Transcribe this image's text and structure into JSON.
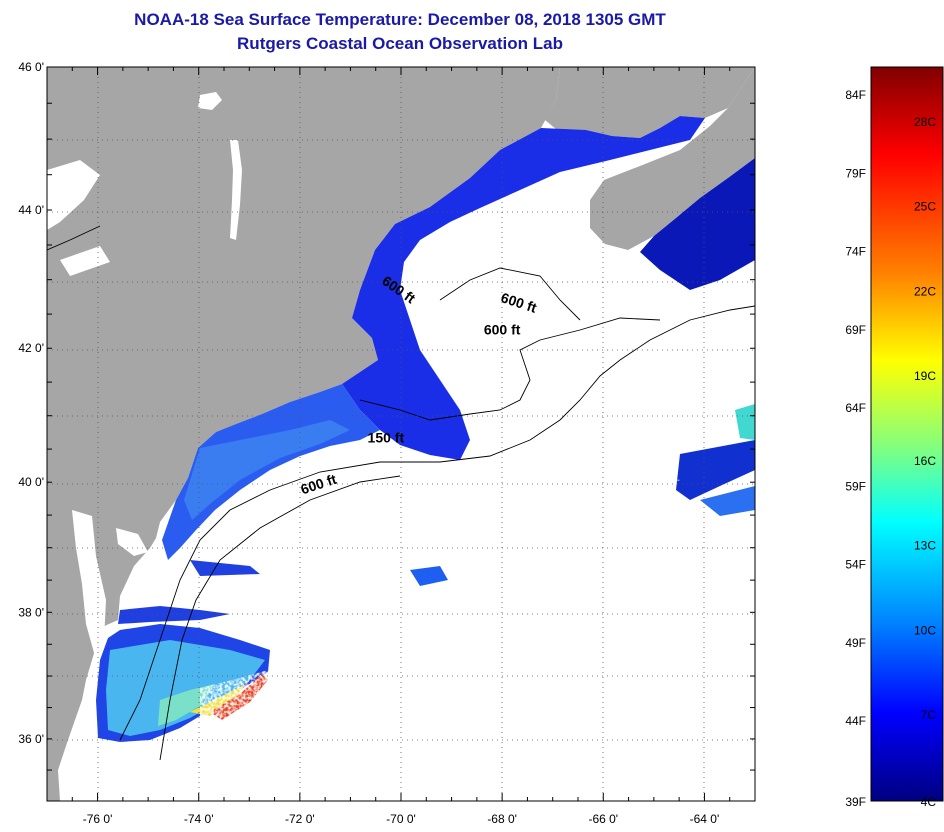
{
  "title": {
    "line1": "NOAA-18 Sea Surface Temperature:  December 08, 2018 1305 GMT",
    "line2": "Rutgers Coastal Ocean Observation Lab"
  },
  "map": {
    "lon_range": [
      -77,
      -63
    ],
    "lat_range": [
      35,
      46
    ],
    "lon_ticks": [
      {
        "value": -76,
        "label": "-76 0'"
      },
      {
        "value": -74,
        "label": "-74 0'"
      },
      {
        "value": -72,
        "label": "-72 0'"
      },
      {
        "value": -70,
        "label": "-70 0'"
      },
      {
        "value": -68,
        "label": "-68 0'"
      },
      {
        "value": -66,
        "label": "-66 0'"
      },
      {
        "value": -64,
        "label": "-64 0'"
      }
    ],
    "lat_ticks": [
      {
        "value": 46,
        "label": "46 0'"
      },
      {
        "value": 44,
        "label": "44 0'"
      },
      {
        "value": 42,
        "label": "42 0'"
      },
      {
        "value": 40,
        "label": "40 0'"
      },
      {
        "value": 38,
        "label": "38 0'"
      },
      {
        "value": 36,
        "label": "36 0'"
      }
    ],
    "grid": "dotted",
    "contour_labels": [
      {
        "text": "600 ft",
        "lon": -70.1,
        "lat": 42.8
      },
      {
        "text": "600 ft",
        "lon": -67.7,
        "lat": 42.6
      },
      {
        "text": "600 ft",
        "lon": -68.0,
        "lat": 42.2
      },
      {
        "text": "150 ft",
        "lon": -70.3,
        "lat": 40.6
      },
      {
        "text": "600 ft",
        "lon": -71.6,
        "lat": 39.9
      }
    ],
    "colors": {
      "land": "#a6a6a6",
      "ocean_nodata": "#ffffff",
      "grid": "#555555"
    }
  },
  "colorbar": {
    "f_labels": [
      "84F",
      "79F",
      "74F",
      "69F",
      "64F",
      "59F",
      "54F",
      "49F",
      "44F",
      "39F"
    ],
    "c_labels": [
      "28C",
      "25C",
      "22C",
      "19C",
      "16C",
      "13C",
      "10C",
      "7C",
      "4C"
    ],
    "colors": [
      "#800000",
      "#ff0000",
      "#ff8000",
      "#ffff00",
      "#80ff80",
      "#00ffff",
      "#0080ff",
      "#0000ff",
      "#000080"
    ]
  }
}
